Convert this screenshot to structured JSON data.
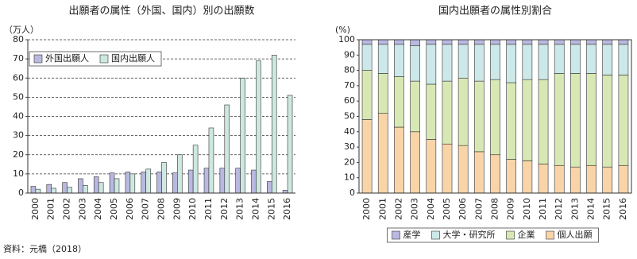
{
  "chart_data": [
    {
      "type": "bar",
      "title": "出願者の属性（外国、国内）別の出願数",
      "y_label": "（万人）",
      "categories": [
        "2000",
        "2001",
        "2002",
        "2003",
        "2004",
        "2005",
        "2006",
        "2007",
        "2008",
        "2009",
        "2010",
        "2011",
        "2012",
        "2013",
        "2014",
        "2015",
        "2016"
      ],
      "series": [
        {
          "name": "外国出願人",
          "color": "#b8b8e0",
          "values": [
            3.5,
            4.5,
            5.5,
            7.5,
            8.5,
            10.5,
            11,
            11,
            11,
            10.5,
            12,
            13,
            13,
            13,
            12,
            6,
            1.5
          ]
        },
        {
          "name": "国内出願人",
          "color": "#cce8e0",
          "values": [
            2,
            2.5,
            3,
            4,
            5.5,
            7.5,
            10,
            12.5,
            16,
            20,
            25,
            34,
            46,
            60,
            69,
            72,
            51
          ]
        }
      ],
      "ylim": [
        0,
        80
      ],
      "yticks": [
        0,
        10,
        20,
        30,
        40,
        50,
        60,
        70,
        80
      ],
      "grid": true,
      "stacked": false,
      "legend": "upper left"
    },
    {
      "type": "bar",
      "title": "国内出願者の属性別割合",
      "y_label": "(%)",
      "categories": [
        "2000",
        "2001",
        "2002",
        "2003",
        "2004",
        "2005",
        "2006",
        "2007",
        "2008",
        "2009",
        "2010",
        "2011",
        "2012",
        "2013",
        "2014",
        "2015",
        "2016"
      ],
      "series": [
        {
          "name": "個人出願",
          "color": "#f8d4a8",
          "values": [
            48,
            52,
            43,
            40,
            35,
            32,
            31,
            27,
            25,
            22,
            21,
            19,
            18,
            17,
            18,
            17,
            18
          ]
        },
        {
          "name": "企業",
          "color": "#d8e8b4",
          "values": [
            32,
            26,
            33,
            33,
            36,
            41,
            44,
            46,
            49,
            50,
            53,
            55,
            60,
            61,
            60,
            60,
            59
          ]
        },
        {
          "name": "大学・研究所",
          "color": "#cce8e8",
          "values": [
            17,
            19,
            21,
            23,
            26,
            24,
            22,
            24,
            23,
            25,
            23,
            23,
            19,
            19,
            19,
            20,
            20
          ]
        },
        {
          "name": "産学",
          "color": "#b8b8e0",
          "values": [
            3,
            3,
            3,
            4,
            3,
            3,
            3,
            3,
            3,
            3,
            3,
            3,
            3,
            3,
            3,
            3,
            3
          ]
        }
      ],
      "ylim": [
        0,
        100
      ],
      "yticks": [
        0,
        10,
        20,
        30,
        40,
        50,
        60,
        70,
        80,
        90,
        100
      ],
      "grid": false,
      "stacked": true,
      "legend": "bottom"
    }
  ],
  "source": "資料：元橋（2018）"
}
